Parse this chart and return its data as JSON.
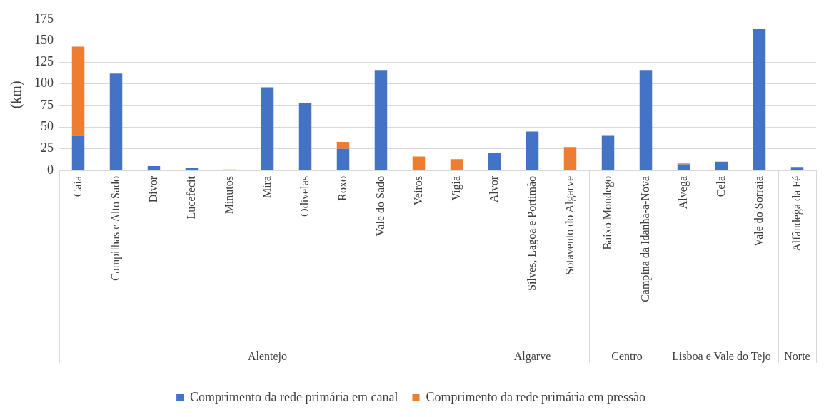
{
  "chart_data": {
    "type": "bar",
    "stacked": true,
    "ylabel": "(km)",
    "categories": [
      "Caia",
      "Campilhas e Alto Sado",
      "Divor",
      "Lucefecit",
      "Minutos",
      "Mira",
      "Odivelas",
      "Roxo",
      "Vale do Sado",
      "Veiros",
      "Vigia",
      "Alvor",
      "Silves, Lagoa e Portimão",
      "Sotavento do Algarve",
      "Baixo Mondego",
      "Campina da Idanha-a-Nova",
      "Alvega",
      "Cela",
      "Vale do Sorraia",
      "Alfândega da Fé"
    ],
    "series": [
      {
        "name": "Comprimento da rede primária em canal",
        "color": "#4472c4",
        "values": [
          40,
          112,
          5,
          3,
          0,
          96,
          78,
          25,
          116,
          0,
          0,
          20,
          45,
          0,
          40,
          116,
          7,
          10,
          164,
          4
        ]
      },
      {
        "name": "Comprimento da rede primária em pressão",
        "color": "#ed7d31",
        "values": [
          103,
          0,
          0,
          0,
          1,
          0,
          0,
          8,
          0,
          16,
          13,
          0,
          0,
          27,
          0,
          0,
          1,
          0,
          0,
          0
        ]
      }
    ],
    "ylim": [
      0,
      175
    ],
    "yticks": [
      0,
      25,
      50,
      75,
      100,
      125,
      150,
      175
    ],
    "grid": "y",
    "legend": "bottom",
    "annotations": [
      "Alentejo",
      "Algarve",
      "Centro",
      "Lisboa e Vale do Tejo",
      "Norte"
    ]
  }
}
